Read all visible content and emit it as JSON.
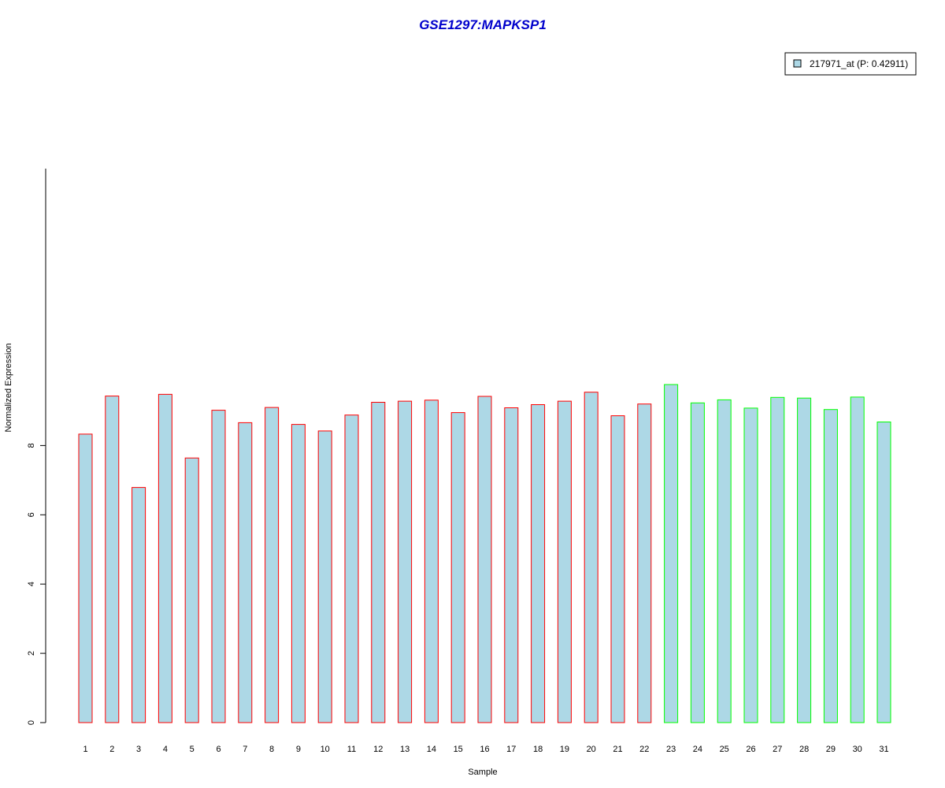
{
  "chart_data": {
    "type": "bar",
    "title": "GSE1297:MAPKSP1",
    "xlabel": "Sample",
    "ylabel": "Normalized Expression",
    "categories": [
      "1",
      "2",
      "3",
      "4",
      "5",
      "6",
      "7",
      "8",
      "9",
      "10",
      "11",
      "12",
      "13",
      "14",
      "15",
      "16",
      "17",
      "18",
      "19",
      "20",
      "21",
      "22",
      "23",
      "24",
      "25",
      "26",
      "27",
      "28",
      "29",
      "30",
      "31"
    ],
    "series": [
      {
        "name": "217971_at (P: 0.42911)",
        "values": [
          8.33,
          9.43,
          6.79,
          9.48,
          7.64,
          9.02,
          8.66,
          9.1,
          8.61,
          8.42,
          8.88,
          9.25,
          9.28,
          9.31,
          8.95,
          9.42,
          9.09,
          9.18,
          9.28,
          9.54,
          8.86,
          9.2,
          9.76,
          9.23,
          9.32,
          9.08,
          9.39,
          9.37,
          9.04,
          9.4,
          8.68
        ]
      }
    ],
    "groups": [
      "a",
      "a",
      "a",
      "a",
      "a",
      "a",
      "a",
      "a",
      "a",
      "a",
      "a",
      "a",
      "a",
      "a",
      "a",
      "a",
      "a",
      "a",
      "a",
      "a",
      "a",
      "a",
      "b",
      "b",
      "b",
      "b",
      "b",
      "b",
      "b",
      "b",
      "b"
    ],
    "yticks": [
      0,
      2,
      4,
      6,
      8
    ],
    "ylim": [
      0,
      9.76
    ],
    "grid": false,
    "legend_position": "top-right"
  },
  "colors": {
    "title": "#0000CC",
    "bar_fill": "#ADD8E6",
    "group_a_border": "#FF0000",
    "group_b_border": "#00FF00",
    "axis": "#000000"
  }
}
